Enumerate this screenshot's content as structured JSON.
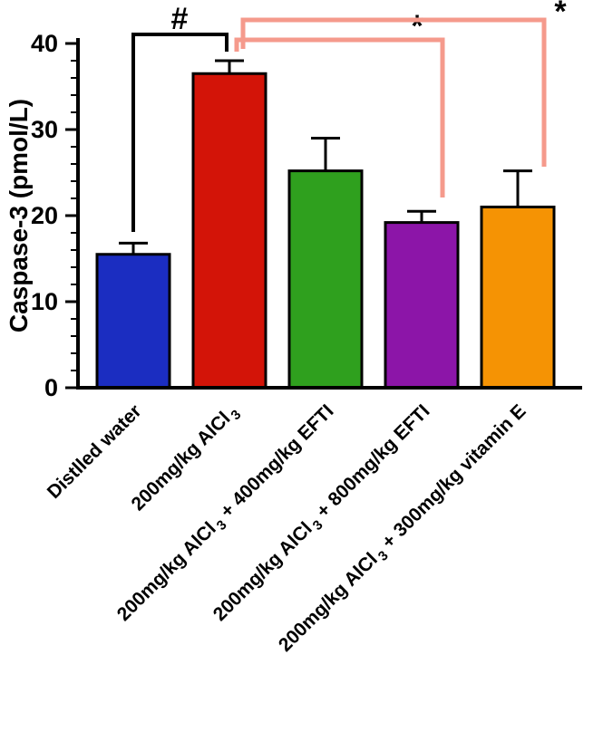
{
  "chart_data": {
    "type": "bar",
    "title": "",
    "ylabel": "Caspase-3 (pmol/L)",
    "xlabel": "",
    "ylim": [
      0,
      40
    ],
    "yticks": [
      0,
      10,
      20,
      30,
      40
    ],
    "minor_tick_step": 2,
    "grid": false,
    "legend": false,
    "categories": [
      "Distlled water",
      "200mg/kg AlCl₃",
      "200mg/kg AlCl₃ + 400mg/kg EFTI",
      "200mg/kg AlCl₃ + 800mg/kg EFTI",
      "200mg/kg AlCl₃ + 300mg/kg vitamin E"
    ],
    "values": [
      15.5,
      36.5,
      25.2,
      19.2,
      21.0
    ],
    "errors_upper": [
      1.3,
      1.5,
      3.8,
      1.3,
      4.2
    ],
    "bar_colors": [
      "#1b2dc1",
      "#d31408",
      "#2fa01e",
      "#8c15a8",
      "#f59304"
    ],
    "bar_edge_color": "#000000",
    "error_color": "#000000",
    "axis_color": "#000000",
    "significance": [
      {
        "symbol": "#",
        "line_color": "#000000",
        "symbol_color": "#000000",
        "between": [
          0,
          1
        ]
      },
      {
        "symbol": "*",
        "line_color": "#f59a8c",
        "symbol_color": "#000000",
        "between": [
          1,
          3
        ]
      },
      {
        "symbol": "*",
        "line_color": "#f59a8c",
        "symbol_color": "#000000",
        "between": [
          1,
          4
        ]
      }
    ]
  }
}
